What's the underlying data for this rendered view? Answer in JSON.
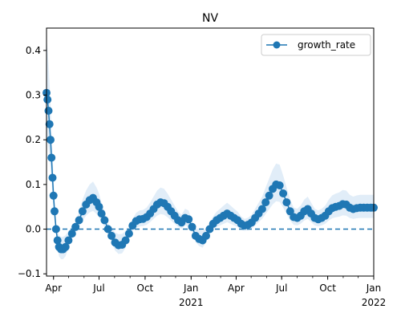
{
  "chart_data": {
    "type": "line",
    "title": "NV",
    "xlabel": "",
    "ylabel": "",
    "xlim": [
      "2020-03-18",
      "2022-01-01"
    ],
    "ylim": [
      -0.105,
      0.45
    ],
    "x_ticks": [
      {
        "date": "2020-04-01",
        "label": "Apr"
      },
      {
        "date": "2020-07-01",
        "label": "Jul"
      },
      {
        "date": "2020-10-01",
        "label": "Oct"
      },
      {
        "date": "2021-01-01",
        "label": "Jan",
        "sublabel": "2021"
      },
      {
        "date": "2021-04-01",
        "label": "Apr"
      },
      {
        "date": "2021-07-01",
        "label": "Jul"
      },
      {
        "date": "2021-10-01",
        "label": "Oct"
      },
      {
        "date": "2022-01-01",
        "label": "Jan",
        "sublabel": "2022"
      }
    ],
    "y_ticks": [
      -0.1,
      0.0,
      0.1,
      0.2,
      0.3,
      0.4
    ],
    "y_tick_labels": [
      "−0.1",
      "0.0",
      "0.1",
      "0.2",
      "0.3",
      "0.4"
    ],
    "reference_line": {
      "y": 0.0,
      "style": "dashed"
    },
    "legend": {
      "position": "top-right",
      "entries": [
        "growth_rate"
      ]
    },
    "series": [
      {
        "name": "growth_rate",
        "color": "#1f77b4",
        "band_color": "#d4e6f5",
        "x": [
          "2020-03-18",
          "2020-03-20",
          "2020-03-22",
          "2020-03-24",
          "2020-03-26",
          "2020-03-28",
          "2020-03-30",
          "2020-04-01",
          "2020-04-03",
          "2020-04-06",
          "2020-04-09",
          "2020-04-12",
          "2020-04-16",
          "2020-04-20",
          "2020-04-25",
          "2020-05-01",
          "2020-05-08",
          "2020-05-15",
          "2020-05-22",
          "2020-05-29",
          "2020-06-05",
          "2020-06-12",
          "2020-06-19",
          "2020-06-26",
          "2020-07-01",
          "2020-07-06",
          "2020-07-12",
          "2020-07-19",
          "2020-07-26",
          "2020-08-02",
          "2020-08-09",
          "2020-08-16",
          "2020-08-23",
          "2020-08-30",
          "2020-09-06",
          "2020-09-13",
          "2020-09-20",
          "2020-09-27",
          "2020-10-04",
          "2020-10-11",
          "2020-10-18",
          "2020-10-25",
          "2020-11-01",
          "2020-11-08",
          "2020-11-15",
          "2020-11-22",
          "2020-11-29",
          "2020-12-06",
          "2020-12-13",
          "2020-12-20",
          "2020-12-27",
          "2021-01-03",
          "2021-01-10",
          "2021-01-17",
          "2021-01-24",
          "2021-01-31",
          "2021-02-07",
          "2021-02-14",
          "2021-02-21",
          "2021-02-28",
          "2021-03-07",
          "2021-03-14",
          "2021-03-21",
          "2021-03-28",
          "2021-04-04",
          "2021-04-11",
          "2021-04-18",
          "2021-04-25",
          "2021-05-02",
          "2021-05-09",
          "2021-05-16",
          "2021-05-23",
          "2021-05-30",
          "2021-06-06",
          "2021-06-13",
          "2021-06-20",
          "2021-06-27",
          "2021-07-04",
          "2021-07-11",
          "2021-07-18",
          "2021-07-25",
          "2021-08-01",
          "2021-08-08",
          "2021-08-15",
          "2021-08-22",
          "2021-08-29",
          "2021-09-05",
          "2021-09-12",
          "2021-09-19",
          "2021-09-26",
          "2021-10-03",
          "2021-10-10",
          "2021-10-17",
          "2021-10-24",
          "2021-10-31",
          "2021-11-07",
          "2021-11-14",
          "2021-11-21",
          "2021-11-28",
          "2021-12-05",
          "2021-12-12",
          "2021-12-19",
          "2021-12-26",
          "2022-01-01"
        ],
        "values": [
          0.305,
          0.29,
          0.265,
          0.235,
          0.2,
          0.16,
          0.115,
          0.075,
          0.04,
          0.0,
          -0.025,
          -0.04,
          -0.045,
          -0.045,
          -0.04,
          -0.025,
          -0.01,
          0.005,
          0.02,
          0.04,
          0.055,
          0.065,
          0.07,
          0.06,
          0.05,
          0.035,
          0.02,
          0.0,
          -0.015,
          -0.03,
          -0.036,
          -0.035,
          -0.025,
          -0.01,
          0.008,
          0.018,
          0.022,
          0.023,
          0.027,
          0.035,
          0.045,
          0.055,
          0.06,
          0.058,
          0.05,
          0.04,
          0.03,
          0.02,
          0.015,
          0.025,
          0.022,
          0.005,
          -0.015,
          -0.022,
          -0.025,
          -0.015,
          0.0,
          0.012,
          0.02,
          0.025,
          0.03,
          0.035,
          0.03,
          0.025,
          0.02,
          0.012,
          0.008,
          0.01,
          0.015,
          0.025,
          0.035,
          0.045,
          0.06,
          0.075,
          0.09,
          0.1,
          0.098,
          0.08,
          0.06,
          0.04,
          0.027,
          0.025,
          0.03,
          0.04,
          0.045,
          0.035,
          0.025,
          0.022,
          0.025,
          0.03,
          0.04,
          0.047,
          0.05,
          0.052,
          0.056,
          0.055,
          0.048,
          0.045,
          0.047,
          0.048,
          0.048,
          0.048,
          0.048,
          0.048
        ]
      }
    ]
  }
}
